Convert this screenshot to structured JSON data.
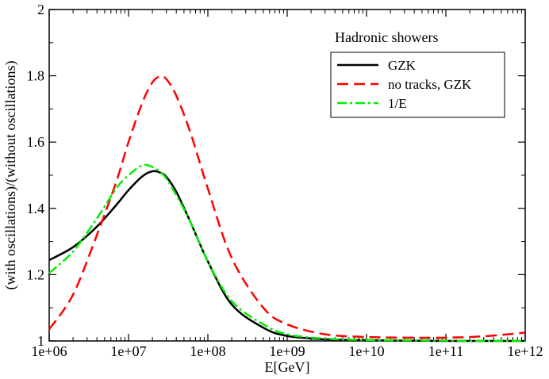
{
  "chart_data": {
    "type": "line",
    "title": "",
    "xlabel": "E[GeV]",
    "ylabel": "(with oscillations)/(without oscillations)",
    "x_scale": "log",
    "xlim": [
      1000000,
      1000000000000
    ],
    "ylim": [
      1,
      2
    ],
    "x_tick_values": [
      1000000,
      10000000,
      100000000,
      1000000000,
      10000000000,
      100000000000,
      1000000000000
    ],
    "x_tick_labels": [
      "1e+06",
      "1e+07",
      "1e+08",
      "1e+09",
      "1e+10",
      "1e+11",
      "1e+12"
    ],
    "y_tick_values": [
      1,
      1.2,
      1.4,
      1.6,
      1.8,
      2
    ],
    "y_tick_labels": [
      "1",
      "1.2",
      "1.4",
      "1.6",
      "1.8",
      "2"
    ],
    "annotation": "Hadronic showers",
    "legend_position": "top-right",
    "series": [
      {
        "name": "GZK",
        "color": "#000000",
        "dash": "solid",
        "x": [
          1000000,
          2000000,
          4000000,
          7000000,
          10000000,
          15000000,
          20000000,
          25000000,
          30000000,
          40000000,
          60000000,
          100000000,
          200000000,
          500000000,
          1000000000,
          3000000000,
          10000000000,
          100000000000,
          1000000000000
        ],
        "y": [
          1.244,
          1.283,
          1.345,
          1.41,
          1.455,
          1.497,
          1.512,
          1.508,
          1.495,
          1.45,
          1.36,
          1.24,
          1.11,
          1.04,
          1.015,
          1.005,
          1.002,
          1.0,
          1.0
        ]
      },
      {
        "name": "no tracks, GZK",
        "color": "#ff0000",
        "dash": "dashed",
        "x": [
          1000000,
          2000000,
          4000000,
          7000000,
          10000000,
          15000000,
          20000000,
          25000000,
          30000000,
          40000000,
          60000000,
          100000000,
          200000000,
          500000000,
          1000000000,
          3000000000,
          10000000000,
          30000000000,
          100000000000,
          300000000000,
          1000000000000
        ],
        "y": [
          1.035,
          1.14,
          1.32,
          1.48,
          1.6,
          1.72,
          1.78,
          1.798,
          1.79,
          1.74,
          1.63,
          1.46,
          1.25,
          1.1,
          1.05,
          1.02,
          1.012,
          1.01,
          1.01,
          1.014,
          1.025
        ]
      },
      {
        "name": "1/E",
        "color": "#00ee00",
        "dash": "dashdot",
        "x": [
          1000000,
          2000000,
          4000000,
          7000000,
          10000000,
          15000000,
          20000000,
          25000000,
          30000000,
          40000000,
          60000000,
          100000000,
          200000000,
          500000000,
          1000000000,
          3000000000,
          10000000000,
          100000000000,
          1000000000000
        ],
        "y": [
          1.205,
          1.27,
          1.37,
          1.46,
          1.5,
          1.53,
          1.525,
          1.51,
          1.49,
          1.44,
          1.36,
          1.24,
          1.12,
          1.05,
          1.02,
          1.007,
          1.003,
          1.001,
          1.0
        ]
      }
    ]
  }
}
